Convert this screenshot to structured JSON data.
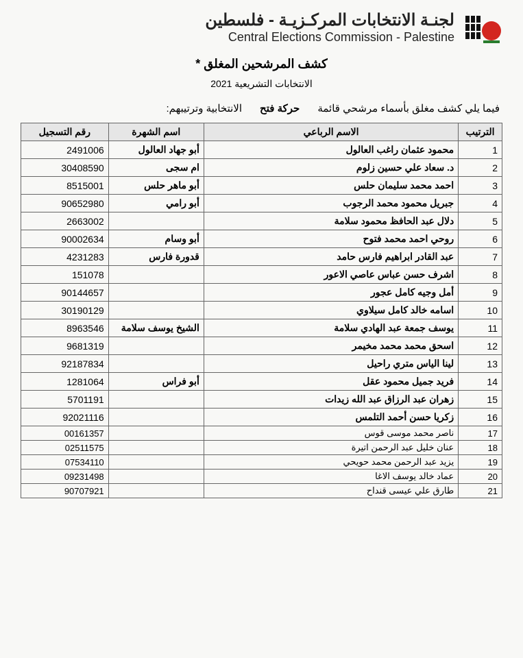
{
  "header": {
    "ar": "لجنـة الانتخابات المركـزيـة - فلسطين",
    "en": "Central Elections Commission - Palestine"
  },
  "doc_title": "كشف المرشحين المغلق *",
  "doc_subtitle": "الانتخابات التشريعية 2021",
  "intro": {
    "prefix": "فيما يلي كشف مغلق بأسماء مرشحي قائمة",
    "list_name": "حركة فتح",
    "suffix": "الانتخابية وترتيبهم:"
  },
  "columns": {
    "order": "الترتيب",
    "name": "الاسم الرباعي",
    "nickname": "اسم الشهرة",
    "reg": "رقم التسجيل"
  },
  "rows_large": [
    {
      "order": 1,
      "name": "محمود عثمان راغب العالول",
      "nickname": "أبو جهاد العالول",
      "reg": "2491006"
    },
    {
      "order": 2,
      "name": "د. سعاد علي حسين زلوم",
      "nickname": "ام سجى",
      "reg": "30408590"
    },
    {
      "order": 3,
      "name": "احمد محمد سليمان حلس",
      "nickname": "أبو ماهر حلس",
      "reg": "8515001"
    },
    {
      "order": 4,
      "name": "جبريل محمود محمد الرجوب",
      "nickname": "أبو رامي",
      "reg": "90652980"
    },
    {
      "order": 5,
      "name": "دلال عبد الحافظ محمود سلامة",
      "nickname": "",
      "reg": "2663002"
    },
    {
      "order": 6,
      "name": "روحي احمد محمد فتوح",
      "nickname": "أبو وسام",
      "reg": "90002634"
    },
    {
      "order": 7,
      "name": "عبد القادر ابراهيم فارس حامد",
      "nickname": "قدورة فارس",
      "reg": "4231283"
    },
    {
      "order": 8,
      "name": "اشرف حسن عباس عاصي الاعور",
      "nickname": "",
      "reg": "151078"
    },
    {
      "order": 9,
      "name": "أمل وجيه كامل عجور",
      "nickname": "",
      "reg": "90144657"
    },
    {
      "order": 10,
      "name": "اسامه خالد كامل سيلاوي",
      "nickname": "",
      "reg": "30190129"
    },
    {
      "order": 11,
      "name": "يوسف جمعة عبد الهادي سلامة",
      "nickname": "الشيخ يوسف سلامة",
      "reg": "8963546"
    },
    {
      "order": 12,
      "name": "اسحق محمد محمد مخيمر",
      "nickname": "",
      "reg": "9681319"
    },
    {
      "order": 13,
      "name": "لينا الياس متري راحيل",
      "nickname": "",
      "reg": "92187834"
    },
    {
      "order": 14,
      "name": "فريد جميل محمود عقل",
      "nickname": "أبو فراس",
      "reg": "1281064"
    },
    {
      "order": 15,
      "name": "زهران عبد الرزاق عبد الله زيدات",
      "nickname": "",
      "reg": "5701191"
    },
    {
      "order": 16,
      "name": "زكريا حسن أحمد التلمس",
      "nickname": "",
      "reg": "92021116"
    }
  ],
  "rows_small": [
    {
      "order": 17,
      "name": "ناصر محمد موسى قوس",
      "nickname": "",
      "reg": "00161357"
    },
    {
      "order": 18,
      "name": "عنان خليل عبد الرحمن اتيرة",
      "nickname": "",
      "reg": "02511575"
    },
    {
      "order": 19,
      "name": "يزيد عبد الرحمن محمد حويحي",
      "nickname": "",
      "reg": "07534110"
    },
    {
      "order": 20,
      "name": "عماد خالد يوسف الاغا",
      "nickname": "",
      "reg": "09231498"
    },
    {
      "order": 21,
      "name": "طارق علي عيسى قنداح",
      "nickname": "",
      "reg": "90707921"
    }
  ],
  "style": {
    "page_bg": "#f8f8f6",
    "outer_bg": "#b8beb8",
    "border_color": "#666666",
    "header_row_bg": "#e6e6e6",
    "title_fontsize_pt": 18,
    "body_fontsize_pt": 14,
    "small_fontsize_pt": 13,
    "logo_colors": {
      "red": "#d32620",
      "green": "#2a7d2e",
      "black": "#111111"
    }
  }
}
